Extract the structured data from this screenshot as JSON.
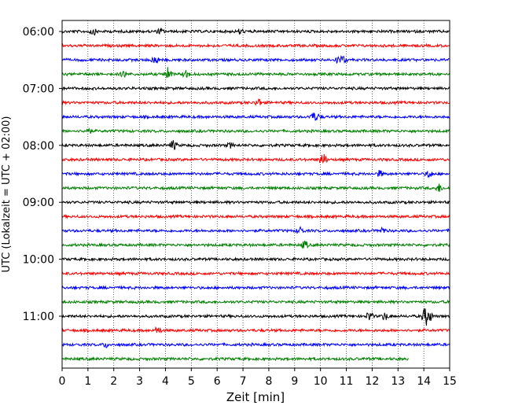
{
  "chart_data": {
    "type": "line",
    "title": "",
    "xlabel": "Zeit  [min]",
    "ylabel": "UTC (Lokalzeit = UTC + 02:00)",
    "xlim": [
      0,
      15
    ],
    "x_ticks": [
      "0",
      "1",
      "2",
      "3",
      "4",
      "5",
      "6",
      "7",
      "8",
      "9",
      "10",
      "11",
      "12",
      "13",
      "14",
      "15"
    ],
    "y_ticks": [
      "06:00",
      "07:00",
      "08:00",
      "09:00",
      "10:00",
      "11:00"
    ],
    "grid": "vertical dotted at each minute",
    "trace_interval_min": 15,
    "trace_colors": [
      "#000000",
      "#ff0000",
      "#0000ff",
      "#008000"
    ],
    "traces": [
      {
        "start": "06:00",
        "color": "#000000",
        "end_min": 15
      },
      {
        "start": "06:15",
        "color": "#ff0000",
        "end_min": 15
      },
      {
        "start": "06:30",
        "color": "#0000ff",
        "end_min": 15
      },
      {
        "start": "06:45",
        "color": "#008000",
        "end_min": 15
      },
      {
        "start": "07:00",
        "color": "#000000",
        "end_min": 15
      },
      {
        "start": "07:15",
        "color": "#ff0000",
        "end_min": 15
      },
      {
        "start": "07:30",
        "color": "#0000ff",
        "end_min": 15
      },
      {
        "start": "07:45",
        "color": "#008000",
        "end_min": 15
      },
      {
        "start": "08:00",
        "color": "#000000",
        "end_min": 15
      },
      {
        "start": "08:15",
        "color": "#ff0000",
        "end_min": 15
      },
      {
        "start": "08:30",
        "color": "#0000ff",
        "end_min": 15
      },
      {
        "start": "08:45",
        "color": "#008000",
        "end_min": 15
      },
      {
        "start": "09:00",
        "color": "#000000",
        "end_min": 15
      },
      {
        "start": "09:15",
        "color": "#ff0000",
        "end_min": 15
      },
      {
        "start": "09:30",
        "color": "#0000ff",
        "end_min": 15
      },
      {
        "start": "09:45",
        "color": "#008000",
        "end_min": 15
      },
      {
        "start": "10:00",
        "color": "#000000",
        "end_min": 15
      },
      {
        "start": "10:15",
        "color": "#ff0000",
        "end_min": 15
      },
      {
        "start": "10:30",
        "color": "#0000ff",
        "end_min": 15
      },
      {
        "start": "10:45",
        "color": "#008000",
        "end_min": 15
      },
      {
        "start": "11:00",
        "color": "#000000",
        "end_min": 15
      },
      {
        "start": "11:15",
        "color": "#ff0000",
        "end_min": 15
      },
      {
        "start": "11:30",
        "color": "#0000ff",
        "end_min": 15
      },
      {
        "start": "11:45",
        "color": "#008000",
        "end_min": 13.4
      }
    ]
  }
}
